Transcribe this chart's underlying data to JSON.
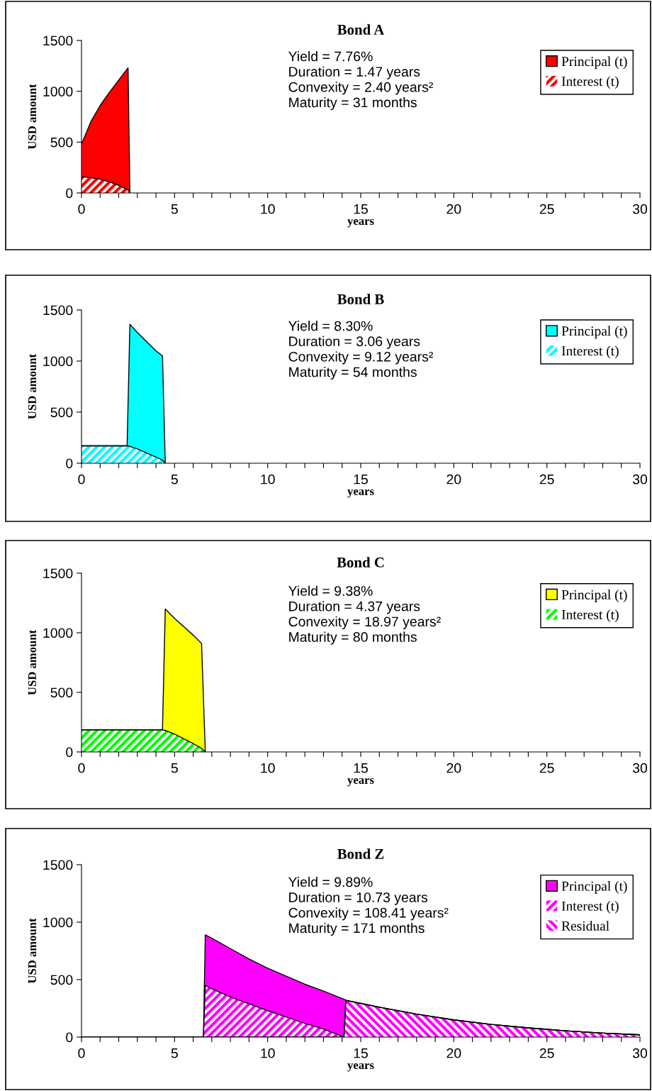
{
  "chart_data": [
    {
      "type": "area",
      "stacked": true,
      "title": "Bond A",
      "xlabel": "years",
      "ylabel": "USD amount",
      "xlim": [
        0,
        30
      ],
      "ylim": [
        0,
        1500
      ],
      "yticks": [
        0,
        500,
        1000,
        1500
      ],
      "xticks": [
        0,
        {
          "value": 1,
          "label": null
        },
        {
          "value": 2,
          "label": null
        },
        {
          "value": 3,
          "label": null
        },
        {
          "value": 4,
          "label": null
        },
        5,
        {
          "value": 6,
          "label": null
        },
        {
          "value": 7,
          "label": null
        },
        {
          "value": 8,
          "label": null
        },
        {
          "value": 9,
          "label": null
        },
        10,
        {
          "value": 11,
          "label": null
        },
        {
          "value": 12,
          "label": null
        },
        {
          "value": 13,
          "label": null
        },
        {
          "value": 14,
          "label": null
        },
        15,
        {
          "value": 16,
          "label": null
        },
        {
          "value": 17,
          "label": null
        },
        {
          "value": 18,
          "label": null
        },
        {
          "value": 19,
          "label": null
        },
        20,
        {
          "value": 21,
          "label": null
        },
        {
          "value": 22,
          "label": null
        },
        {
          "value": 23,
          "label": null
        },
        {
          "value": 24,
          "label": null
        },
        25,
        {
          "value": 26,
          "label": null
        },
        {
          "value": 27,
          "label": null
        },
        {
          "value": 28,
          "label": null
        },
        {
          "value": 29,
          "label": null
        },
        30
      ],
      "x": [
        0,
        0.5,
        1,
        1.5,
        2,
        2.5,
        2.6
      ],
      "series": [
        {
          "name": "Interest (t)",
          "color": "#ff0000",
          "values": [
            160,
            150,
            135,
            110,
            75,
            30,
            0
          ]
        },
        {
          "name": "Principal (t)",
          "color": "#ff0000",
          "values": [
            320,
            550,
            725,
            880,
            1035,
            1200,
            0
          ]
        }
      ],
      "annotations": [
        "Yield = 7.76%\nDuration = 1.47 years\nConvexity = 2.40 years²\nMaturity = 31 months"
      ],
      "legend": "top right",
      "grid": false
    },
    {
      "type": "area",
      "stacked": true,
      "title": "Bond B",
      "xlabel": "years",
      "ylabel": "USD amount",
      "xlim": [
        0,
        30
      ],
      "ylim": [
        0,
        1500
      ],
      "yticks": [
        0,
        500,
        1000,
        1500
      ],
      "xticks": [
        0,
        {
          "value": 1,
          "label": null
        },
        {
          "value": 2,
          "label": null
        },
        {
          "value": 3,
          "label": null
        },
        {
          "value": 4,
          "label": null
        },
        5,
        {
          "value": 6,
          "label": null
        },
        {
          "value": 7,
          "label": null
        },
        {
          "value": 8,
          "label": null
        },
        {
          "value": 9,
          "label": null
        },
        10,
        {
          "value": 11,
          "label": null
        },
        {
          "value": 12,
          "label": null
        },
        {
          "value": 13,
          "label": null
        },
        {
          "value": 14,
          "label": null
        },
        15,
        {
          "value": 16,
          "label": null
        },
        {
          "value": 17,
          "label": null
        },
        {
          "value": 18,
          "label": null
        },
        {
          "value": 19,
          "label": null
        },
        20,
        {
          "value": 21,
          "label": null
        },
        {
          "value": 22,
          "label": null
        },
        {
          "value": 23,
          "label": null
        },
        {
          "value": 24,
          "label": null
        },
        25,
        {
          "value": 26,
          "label": null
        },
        {
          "value": 27,
          "label": null
        },
        {
          "value": 28,
          "label": null
        },
        {
          "value": 29,
          "label": null
        },
        30
      ],
      "x": [
        0,
        2.45,
        2.6,
        3.0,
        3.5,
        4.0,
        4.35,
        4.5
      ],
      "series": [
        {
          "name": "Interest (t)",
          "color": "#00ffff",
          "values": [
            170,
            170,
            165,
            140,
            100,
            60,
            30,
            0
          ]
        },
        {
          "name": "Principal (t)",
          "color": "#00ffff",
          "values": [
            0,
            0,
            1195,
            1140,
            1090,
            1040,
            1020,
            0
          ]
        }
      ],
      "annotations": [
        "Yield = 8.30%\nDuration = 3.06 years\nConvexity = 9.12 years²\nMaturity = 54 months"
      ],
      "legend": "top right",
      "grid": false
    },
    {
      "type": "area",
      "stacked": true,
      "title": "Bond C",
      "xlabel": "years",
      "ylabel": "USD amount",
      "xlim": [
        0,
        30
      ],
      "ylim": [
        0,
        1500
      ],
      "yticks": [
        0,
        500,
        1000,
        1500
      ],
      "xticks": [
        0,
        {
          "value": 1,
          "label": null
        },
        {
          "value": 2,
          "label": null
        },
        {
          "value": 3,
          "label": null
        },
        {
          "value": 4,
          "label": null
        },
        5,
        {
          "value": 6,
          "label": null
        },
        {
          "value": 7,
          "label": null
        },
        {
          "value": 8,
          "label": null
        },
        {
          "value": 9,
          "label": null
        },
        10,
        {
          "value": 11,
          "label": null
        },
        {
          "value": 12,
          "label": null
        },
        {
          "value": 13,
          "label": null
        },
        {
          "value": 14,
          "label": null
        },
        15,
        {
          "value": 16,
          "label": null
        },
        {
          "value": 17,
          "label": null
        },
        {
          "value": 18,
          "label": null
        },
        {
          "value": 19,
          "label": null
        },
        20,
        {
          "value": 21,
          "label": null
        },
        {
          "value": 22,
          "label": null
        },
        {
          "value": 23,
          "label": null
        },
        {
          "value": 24,
          "label": null
        },
        25,
        {
          "value": 26,
          "label": null
        },
        {
          "value": 27,
          "label": null
        },
        {
          "value": 28,
          "label": null
        },
        {
          "value": 29,
          "label": null
        },
        30
      ],
      "x": [
        0,
        4.35,
        4.5,
        5,
        5.5,
        6,
        6.45,
        6.65
      ],
      "series": [
        {
          "name": "Interest (t)",
          "color": "#00ff00",
          "values": [
            185,
            185,
            180,
            150,
            110,
            70,
            30,
            0
          ]
        },
        {
          "name": "Principal (t)",
          "color": "#ffff00",
          "values": [
            0,
            0,
            1020,
            970,
            940,
            910,
            880,
            0
          ]
        }
      ],
      "annotations": [
        "Yield = 9.38%\nDuration = 4.37 years\nConvexity = 18.97 years²\nMaturity = 80 months"
      ],
      "legend": "top right",
      "grid": false
    },
    {
      "type": "area",
      "stacked": true,
      "title": "Bond Z",
      "xlabel": "years",
      "ylabel": "USD amount",
      "xlim": [
        0,
        30
      ],
      "ylim": [
        0,
        1500
      ],
      "yticks": [
        0,
        500,
        1000,
        1500
      ],
      "xticks": [
        0,
        {
          "value": 1,
          "label": null
        },
        {
          "value": 2,
          "label": null
        },
        {
          "value": 3,
          "label": null
        },
        {
          "value": 4,
          "label": null
        },
        5,
        {
          "value": 6,
          "label": null
        },
        {
          "value": 7,
          "label": null
        },
        {
          "value": 8,
          "label": null
        },
        {
          "value": 9,
          "label": null
        },
        10,
        {
          "value": 11,
          "label": null
        },
        {
          "value": 12,
          "label": null
        },
        {
          "value": 13,
          "label": null
        },
        {
          "value": 14,
          "label": null
        },
        15,
        {
          "value": 16,
          "label": null
        },
        {
          "value": 17,
          "label": null
        },
        {
          "value": 18,
          "label": null
        },
        {
          "value": 19,
          "label": null
        },
        20,
        {
          "value": 21,
          "label": null
        },
        {
          "value": 22,
          "label": null
        },
        {
          "value": 23,
          "label": null
        },
        {
          "value": 24,
          "label": null
        },
        25,
        {
          "value": 26,
          "label": null
        },
        {
          "value": 27,
          "label": null
        },
        {
          "value": 28,
          "label": null
        },
        {
          "value": 29,
          "label": null
        },
        30
      ],
      "x": [
        0,
        6.55,
        6.65,
        7,
        8,
        9,
        10,
        11,
        12,
        13,
        14.1,
        14.2,
        16,
        18,
        20,
        22,
        24,
        26,
        28,
        30
      ],
      "series": [
        {
          "name": "Residual",
          "color": "#ff00ff",
          "values": [
            0,
            0,
            0,
            0,
            0,
            0,
            0,
            0,
            0,
            0,
            0,
            320,
            260,
            200,
            150,
            110,
            80,
            55,
            35,
            20
          ]
        },
        {
          "name": "Interest (t)",
          "color": "#ff00ff",
          "values": [
            0,
            0,
            450,
            420,
            350,
            290,
            230,
            175,
            120,
            70,
            0,
            0,
            0,
            0,
            0,
            0,
            0,
            0,
            0,
            0
          ]
        },
        {
          "name": "Principal (t)",
          "color": "#ff00ff",
          "values": [
            0,
            0,
            440,
            440,
            420,
            390,
            370,
            355,
            340,
            330,
            330,
            0,
            0,
            0,
            0,
            0,
            0,
            0,
            0,
            0
          ]
        }
      ],
      "annotations": [
        "Yield = 9.89%\nDuration = 10.73 years\nConvexity = 108.41 years²\nMaturity = 171 months"
      ],
      "legend": "top right",
      "grid": false
    }
  ]
}
